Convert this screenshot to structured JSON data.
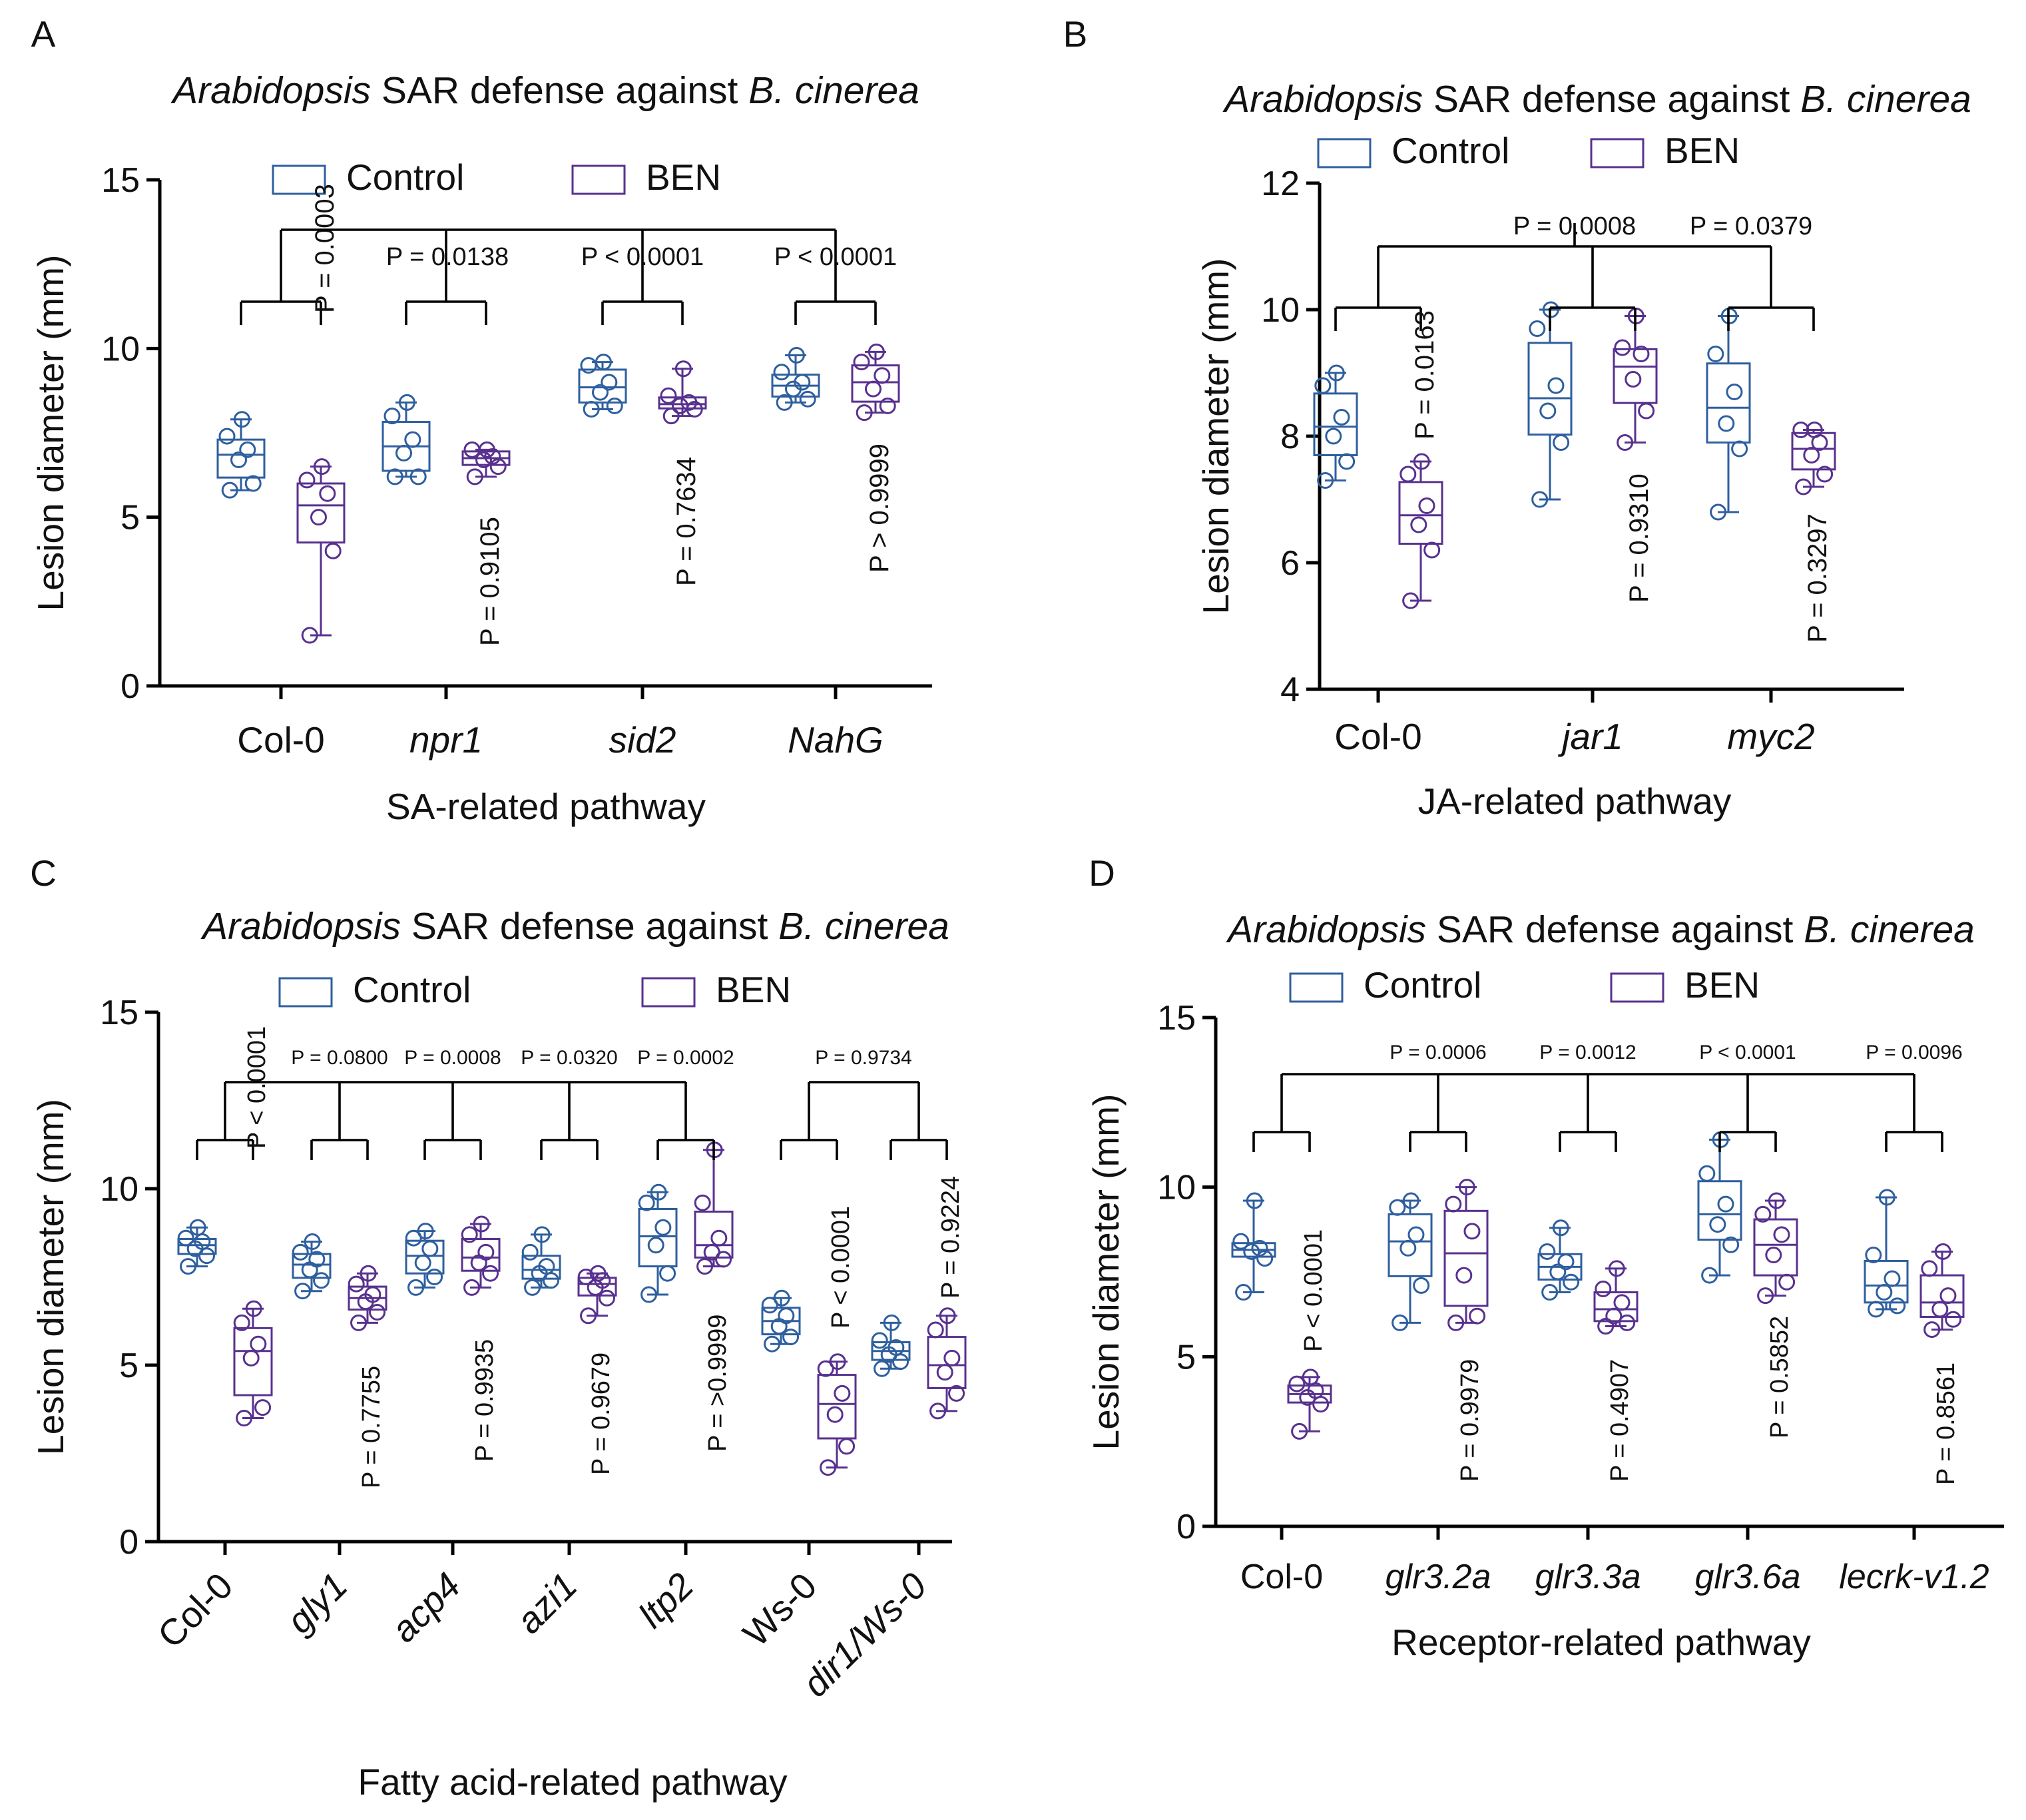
{
  "figure": {
    "colors": {
      "control": "#2e5f9e",
      "ben": "#58318f",
      "axis": "#000000"
    },
    "legend": {
      "control": "Control",
      "ben": "BEN"
    }
  },
  "chart_data": [
    {
      "panel": "A",
      "type": "box",
      "title": "Arabidopsis SAR defense against B. cinerea",
      "title_italic": [
        "Arabidopsis",
        "B. cinerea"
      ],
      "xlabel": "SA-related pathway",
      "ylabel": "Lesion diameter (mm)",
      "ylim": [
        0,
        15
      ],
      "yticks": [
        "0",
        "5",
        "10",
        "15"
      ],
      "categories": [
        "Col-0",
        "npr1",
        "sid2",
        "NahG"
      ],
      "category_italic": [
        false,
        true,
        true,
        true
      ],
      "series": [
        {
          "name": "Control",
          "values": [
            [
              5.8,
              6.0,
              6.7,
              7.0,
              7.4,
              7.9
            ],
            [
              6.2,
              6.2,
              6.9,
              7.3,
              8.0,
              8.4
            ],
            [
              8.2,
              8.3,
              8.7,
              9.0,
              9.5,
              9.6
            ],
            [
              8.4,
              8.5,
              8.8,
              9.0,
              9.3,
              9.8
            ]
          ]
        },
        {
          "name": "BEN",
          "values": [
            [
              1.5,
              4.0,
              5.0,
              5.7,
              6.1,
              6.5
            ],
            [
              6.2,
              6.5,
              6.7,
              6.8,
              7.0,
              7.0
            ],
            [
              8.0,
              8.2,
              8.3,
              8.4,
              8.6,
              9.4
            ],
            [
              8.1,
              8.3,
              8.8,
              9.2,
              9.6,
              9.9
            ]
          ]
        }
      ],
      "pair_p": [
        "P = 0.0003",
        "P = 0.9105",
        "P = 0.7634",
        "P > 0.9999"
      ],
      "group_p": [
        "P = 0.0138",
        "P < 0.0001",
        "P < 0.0001"
      ]
    },
    {
      "panel": "B",
      "type": "box",
      "title": "Arabidopsis SAR defense against B. cinerea",
      "title_italic": [
        "Arabidopsis",
        "B. cinerea"
      ],
      "xlabel": "JA-related pathway",
      "ylabel": "Lesion diameter (mm)",
      "ylim": [
        4,
        12
      ],
      "yticks": [
        "4",
        "6",
        "8",
        "10",
        "12"
      ],
      "categories": [
        "Col-0",
        "jar1",
        "myc2"
      ],
      "category_italic": [
        false,
        true,
        true
      ],
      "series": [
        {
          "name": "Control",
          "values": [
            [
              7.3,
              7.6,
              8.0,
              8.3,
              8.8,
              9.0
            ],
            [
              7.0,
              7.9,
              8.4,
              8.8,
              9.7,
              10.0
            ],
            [
              6.8,
              7.8,
              8.2,
              8.7,
              9.3,
              9.9
            ]
          ]
        },
        {
          "name": "BEN",
          "values": [
            [
              5.4,
              6.2,
              6.6,
              6.9,
              7.4,
              7.6
            ],
            [
              7.9,
              8.4,
              8.9,
              9.3,
              9.4,
              9.9
            ],
            [
              7.2,
              7.4,
              7.7,
              7.9,
              8.1,
              8.1
            ]
          ]
        }
      ],
      "pair_p": [
        "P = 0.0163",
        "P = 0.9310",
        "P = 0.3297"
      ],
      "group_p": [
        "P = 0.0008",
        "P = 0.0379"
      ]
    },
    {
      "panel": "C",
      "type": "box",
      "title": "Arabidopsis SAR defense against B. cinerea",
      "title_italic": [
        "Arabidopsis",
        "B. cinerea"
      ],
      "xlabel": "Fatty acid-related pathway",
      "ylabel": "Lesion diameter (mm)",
      "ylim": [
        0,
        15
      ],
      "yticks": [
        "0",
        "5",
        "10",
        "15"
      ],
      "categories": [
        "Col-0",
        "gly1",
        "acp4",
        "azi1",
        "ltp2",
        "Ws-0",
        "dir1/Ws-0"
      ],
      "category_italic": [
        false,
        true,
        true,
        true,
        true,
        false,
        true
      ],
      "series": [
        {
          "name": "Control",
          "values": [
            [
              7.8,
              8.1,
              8.3,
              8.5,
              8.6,
              8.9
            ],
            [
              7.1,
              7.4,
              7.7,
              8.0,
              8.2,
              8.5
            ],
            [
              7.2,
              7.5,
              7.9,
              8.3,
              8.6,
              8.8
            ],
            [
              7.2,
              7.4,
              7.6,
              7.8,
              8.2,
              8.7
            ],
            [
              7.0,
              7.6,
              8.4,
              8.9,
              9.6,
              9.9
            ],
            [
              5.6,
              5.8,
              6.1,
              6.4,
              6.7,
              6.9
            ]
          ]
        },
        {
          "name": "BEN",
          "values": [
            [
              3.5,
              3.8,
              5.2,
              5.6,
              6.2,
              6.6
            ],
            [
              6.2,
              6.5,
              6.8,
              7.0,
              7.3,
              7.6
            ],
            [
              7.2,
              7.6,
              7.9,
              8.2,
              8.7,
              9.0
            ],
            [
              6.4,
              6.9,
              7.2,
              7.4,
              7.5,
              7.6
            ],
            [
              7.8,
              8.0,
              8.2,
              8.6,
              9.6,
              11.1
            ],
            [
              2.1,
              2.7,
              3.6,
              4.2,
              4.9,
              5.1
            ]
          ]
        },
        {
          "name": "dir1/Ws-0",
          "values": [
            [
              4.9,
              5.1,
              5.3,
              5.5,
              5.7,
              6.2
            ],
            [
              3.7,
              4.2,
              4.8,
              5.2,
              6.0,
              6.4
            ]
          ]
        }
      ],
      "pair_p": [
        "P < 0.0001",
        "P = 0.7755",
        "P = 0.9935",
        "P = 0.9679",
        "P = >0.9999",
        "P < 0.0001",
        "P = 0.9224"
      ],
      "group_p": [
        "P = 0.0800",
        "P = 0.0008",
        "P = 0.0320",
        "P = 0.0002",
        "P = 0.9734"
      ]
    },
    {
      "panel": "D",
      "type": "box",
      "title": "Arabidopsis SAR defense against B. cinerea",
      "title_italic": [
        "Arabidopsis",
        "B. cinerea"
      ],
      "xlabel": "Receptor-related pathway",
      "ylabel": "Lesion diameter (mm)",
      "ylim": [
        0,
        15
      ],
      "yticks": [
        "0",
        "5",
        "10",
        "15"
      ],
      "categories": [
        "Col-0",
        "glr3.2a",
        "glr3.3a",
        "glr3.6a",
        "lecrk-v1.2"
      ],
      "category_italic": [
        false,
        true,
        true,
        true,
        true
      ],
      "series": [
        {
          "name": "Control",
          "values": [
            [
              6.9,
              7.9,
              8.1,
              8.2,
              8.4,
              9.6
            ],
            [
              6.0,
              7.1,
              8.2,
              8.6,
              9.4,
              9.6
            ],
            [
              6.9,
              7.2,
              7.5,
              7.8,
              8.1,
              8.8
            ],
            [
              7.4,
              8.3,
              8.9,
              9.5,
              10.4,
              11.4
            ],
            [
              6.4,
              6.5,
              6.9,
              7.3,
              8.0,
              9.7
            ]
          ]
        },
        {
          "name": "BEN",
          "values": [
            [
              2.8,
              3.6,
              3.8,
              4.0,
              4.2,
              4.4
            ],
            [
              6.0,
              6.2,
              7.4,
              8.7,
              9.5,
              10.0
            ],
            [
              5.9,
              6.0,
              6.2,
              6.6,
              7.0,
              7.6
            ],
            [
              6.8,
              7.2,
              8.0,
              8.6,
              9.2,
              9.6
            ],
            [
              5.8,
              6.1,
              6.4,
              6.8,
              7.6,
              8.1
            ]
          ]
        }
      ],
      "pair_p": [
        "P < 0.0001",
        "P = 0.9979",
        "P = 0.4907",
        "P = 0.5852",
        "P = 0.8561"
      ],
      "group_p": [
        "P = 0.0006",
        "P = 0.0012",
        "P < 0.0001",
        "P = 0.0096"
      ]
    }
  ]
}
